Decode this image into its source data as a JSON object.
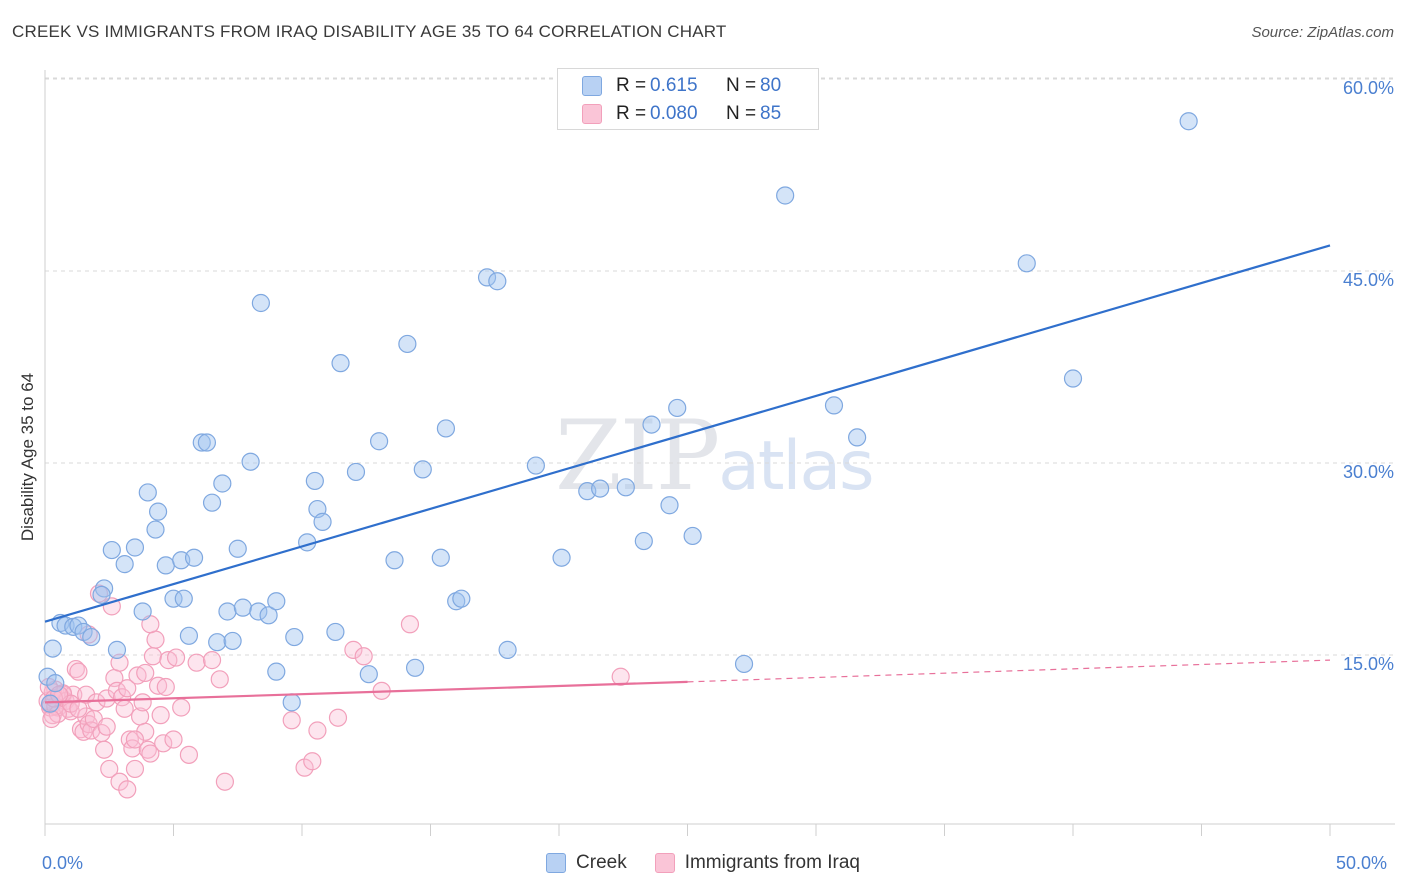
{
  "header": {
    "title": "CREEK VS IMMIGRANTS FROM IRAQ DISABILITY AGE 35 TO 64 CORRELATION CHART",
    "source": "Source: ZipAtlas.com"
  },
  "legend": {
    "series1": {
      "r_label": "R =",
      "r_value": "0.615",
      "n_label": "N =",
      "n_value": "80"
    },
    "series2": {
      "r_label": "R =",
      "r_value": "0.080",
      "n_label": "N =",
      "n_value": "85"
    }
  },
  "watermark": {
    "zip": "ZIP",
    "atlas": "atlas"
  },
  "colors": {
    "creek": "#7fa8e0",
    "creek_line": "#2f6fcc",
    "iraq": "#f2a0bb",
    "iraq_line": "#e8709a",
    "axis_text": "#4a7fd0",
    "grid": "#d9d9d9"
  },
  "chart_data": {
    "type": "scatter",
    "title": "CREEK VS IMMIGRANTS FROM IRAQ DISABILITY AGE 35 TO 64 CORRELATION CHART",
    "xlabel": "",
    "ylabel": "Disability Age 35 to 64",
    "xlim": [
      0,
      50
    ],
    "ylim": [
      0,
      62
    ],
    "x_tick_labels": [
      "0.0%",
      "50.0%"
    ],
    "y_ticks": [
      15,
      30,
      45,
      60
    ],
    "y_tick_labels": [
      "15.0%",
      "30.0%",
      "45.0%",
      "60.0%"
    ],
    "legend_position": "top-center",
    "series": [
      {
        "name": "Creek",
        "r": 0.615,
        "n": 80,
        "trend": {
          "x": [
            0,
            50
          ],
          "y": [
            17.6,
            47.0
          ]
        },
        "points": [
          [
            0.3,
            15.5
          ],
          [
            0.6,
            17.5
          ],
          [
            0.8,
            17.3
          ],
          [
            1.1,
            17.2
          ],
          [
            1.3,
            17.3
          ],
          [
            1.5,
            16.8
          ],
          [
            1.8,
            16.4
          ],
          [
            2.3,
            20.2
          ],
          [
            2.2,
            19.7
          ],
          [
            2.6,
            23.2
          ],
          [
            3.1,
            22.1
          ],
          [
            2.8,
            15.4
          ],
          [
            3.5,
            23.4
          ],
          [
            3.8,
            18.4
          ],
          [
            4.0,
            27.7
          ],
          [
            4.3,
            24.8
          ],
          [
            4.4,
            26.2
          ],
          [
            4.7,
            22.0
          ],
          [
            5.0,
            19.4
          ],
          [
            5.3,
            22.4
          ],
          [
            5.4,
            19.4
          ],
          [
            5.6,
            16.5
          ],
          [
            5.8,
            22.6
          ],
          [
            6.1,
            31.6
          ],
          [
            6.3,
            31.6
          ],
          [
            6.5,
            26.9
          ],
          [
            6.7,
            16.0
          ],
          [
            6.9,
            28.4
          ],
          [
            7.1,
            18.4
          ],
          [
            7.3,
            16.1
          ],
          [
            7.5,
            23.3
          ],
          [
            7.7,
            18.7
          ],
          [
            8.0,
            30.1
          ],
          [
            8.3,
            18.4
          ],
          [
            8.4,
            42.5
          ],
          [
            8.7,
            18.1
          ],
          [
            9.0,
            19.2
          ],
          [
            9.0,
            13.7
          ],
          [
            9.6,
            11.3
          ],
          [
            9.7,
            16.4
          ],
          [
            10.2,
            23.8
          ],
          [
            10.5,
            28.6
          ],
          [
            10.6,
            26.4
          ],
          [
            10.8,
            25.4
          ],
          [
            11.3,
            16.8
          ],
          [
            11.5,
            37.8
          ],
          [
            12.1,
            29.3
          ],
          [
            12.6,
            13.5
          ],
          [
            13.0,
            31.7
          ],
          [
            13.6,
            22.4
          ],
          [
            14.1,
            39.3
          ],
          [
            14.4,
            14.0
          ],
          [
            14.7,
            29.5
          ],
          [
            15.4,
            22.6
          ],
          [
            15.6,
            32.7
          ],
          [
            16.0,
            19.2
          ],
          [
            16.2,
            19.4
          ],
          [
            17.2,
            44.5
          ],
          [
            17.6,
            44.2
          ],
          [
            18.0,
            15.4
          ],
          [
            19.1,
            29.8
          ],
          [
            20.1,
            22.6
          ],
          [
            21.1,
            27.8
          ],
          [
            21.6,
            28.0
          ],
          [
            22.6,
            28.1
          ],
          [
            23.3,
            23.9
          ],
          [
            23.6,
            33.0
          ],
          [
            24.3,
            26.7
          ],
          [
            24.6,
            34.3
          ],
          [
            25.2,
            24.3
          ],
          [
            27.2,
            14.3
          ],
          [
            28.8,
            50.9
          ],
          [
            30.7,
            34.5
          ],
          [
            31.6,
            32.0
          ],
          [
            38.2,
            45.6
          ],
          [
            40.0,
            36.6
          ],
          [
            44.5,
            56.7
          ],
          [
            0.1,
            13.3
          ],
          [
            0.4,
            12.8
          ],
          [
            0.2,
            11.2
          ]
        ]
      },
      {
        "name": "Immigrants from Iraq",
        "r": 0.08,
        "n": 85,
        "trend": {
          "x": [
            0,
            25
          ],
          "y": [
            11.3,
            12.9
          ]
        },
        "trend_extension": {
          "x": [
            25,
            50
          ],
          "y": [
            12.9,
            14.6
          ]
        },
        "points": [
          [
            0.2,
            11.1
          ],
          [
            0.3,
            10.3
          ],
          [
            0.4,
            12.3
          ],
          [
            0.5,
            10.9
          ],
          [
            0.6,
            11.8
          ],
          [
            0.7,
            11.9
          ],
          [
            0.8,
            11.4
          ],
          [
            0.9,
            10.8
          ],
          [
            1.0,
            10.6
          ],
          [
            1.1,
            11.9
          ],
          [
            1.2,
            13.9
          ],
          [
            1.3,
            13.7
          ],
          [
            1.4,
            9.2
          ],
          [
            1.5,
            9.0
          ],
          [
            1.6,
            10.2
          ],
          [
            1.6,
            11.9
          ],
          [
            1.7,
            9.6
          ],
          [
            1.8,
            9.1
          ],
          [
            1.9,
            10.0
          ],
          [
            2.0,
            11.3
          ],
          [
            2.1,
            19.8
          ],
          [
            2.2,
            8.9
          ],
          [
            2.3,
            7.6
          ],
          [
            2.4,
            9.4
          ],
          [
            2.4,
            11.6
          ],
          [
            2.5,
            6.1
          ],
          [
            2.6,
            18.8
          ],
          [
            2.7,
            13.2
          ],
          [
            2.8,
            12.2
          ],
          [
            2.9,
            14.4
          ],
          [
            3.0,
            11.7
          ],
          [
            3.1,
            10.8
          ],
          [
            3.2,
            12.4
          ],
          [
            3.3,
            8.4
          ],
          [
            3.4,
            7.7
          ],
          [
            3.5,
            6.1
          ],
          [
            3.6,
            13.4
          ],
          [
            3.7,
            10.2
          ],
          [
            3.8,
            11.3
          ],
          [
            3.9,
            9.0
          ],
          [
            4.0,
            7.6
          ],
          [
            4.1,
            7.3
          ],
          [
            4.2,
            14.9
          ],
          [
            4.3,
            16.2
          ],
          [
            4.4,
            12.6
          ],
          [
            4.5,
            10.3
          ],
          [
            4.6,
            8.1
          ],
          [
            4.7,
            12.5
          ],
          [
            4.8,
            14.6
          ],
          [
            5.0,
            8.4
          ],
          [
            5.1,
            14.8
          ],
          [
            5.3,
            10.9
          ],
          [
            5.6,
            7.2
          ],
          [
            5.9,
            14.4
          ],
          [
            6.5,
            14.6
          ],
          [
            6.8,
            13.1
          ],
          [
            7.0,
            5.1
          ],
          [
            9.6,
            9.9
          ],
          [
            10.1,
            6.2
          ],
          [
            10.4,
            6.7
          ],
          [
            10.6,
            9.1
          ],
          [
            11.4,
            10.1
          ],
          [
            12.0,
            15.4
          ],
          [
            12.4,
            14.9
          ],
          [
            13.1,
            12.2
          ],
          [
            14.2,
            17.4
          ],
          [
            22.4,
            13.3
          ],
          [
            0.1,
            11.4
          ],
          [
            0.2,
            10.9
          ],
          [
            0.3,
            12.1
          ],
          [
            0.4,
            11.0
          ],
          [
            0.5,
            10.4
          ],
          [
            0.7,
            12.0
          ],
          [
            1.0,
            11.2
          ],
          [
            1.3,
            10.8
          ],
          [
            1.7,
            16.6
          ],
          [
            2.9,
            5.1
          ],
          [
            3.2,
            4.5
          ],
          [
            3.5,
            8.4
          ],
          [
            3.9,
            13.6
          ],
          [
            4.1,
            17.4
          ],
          [
            0.15,
            12.5
          ],
          [
            0.35,
            11.6
          ],
          [
            0.55,
            11.9
          ],
          [
            0.25,
            10.0
          ]
        ]
      }
    ]
  }
}
